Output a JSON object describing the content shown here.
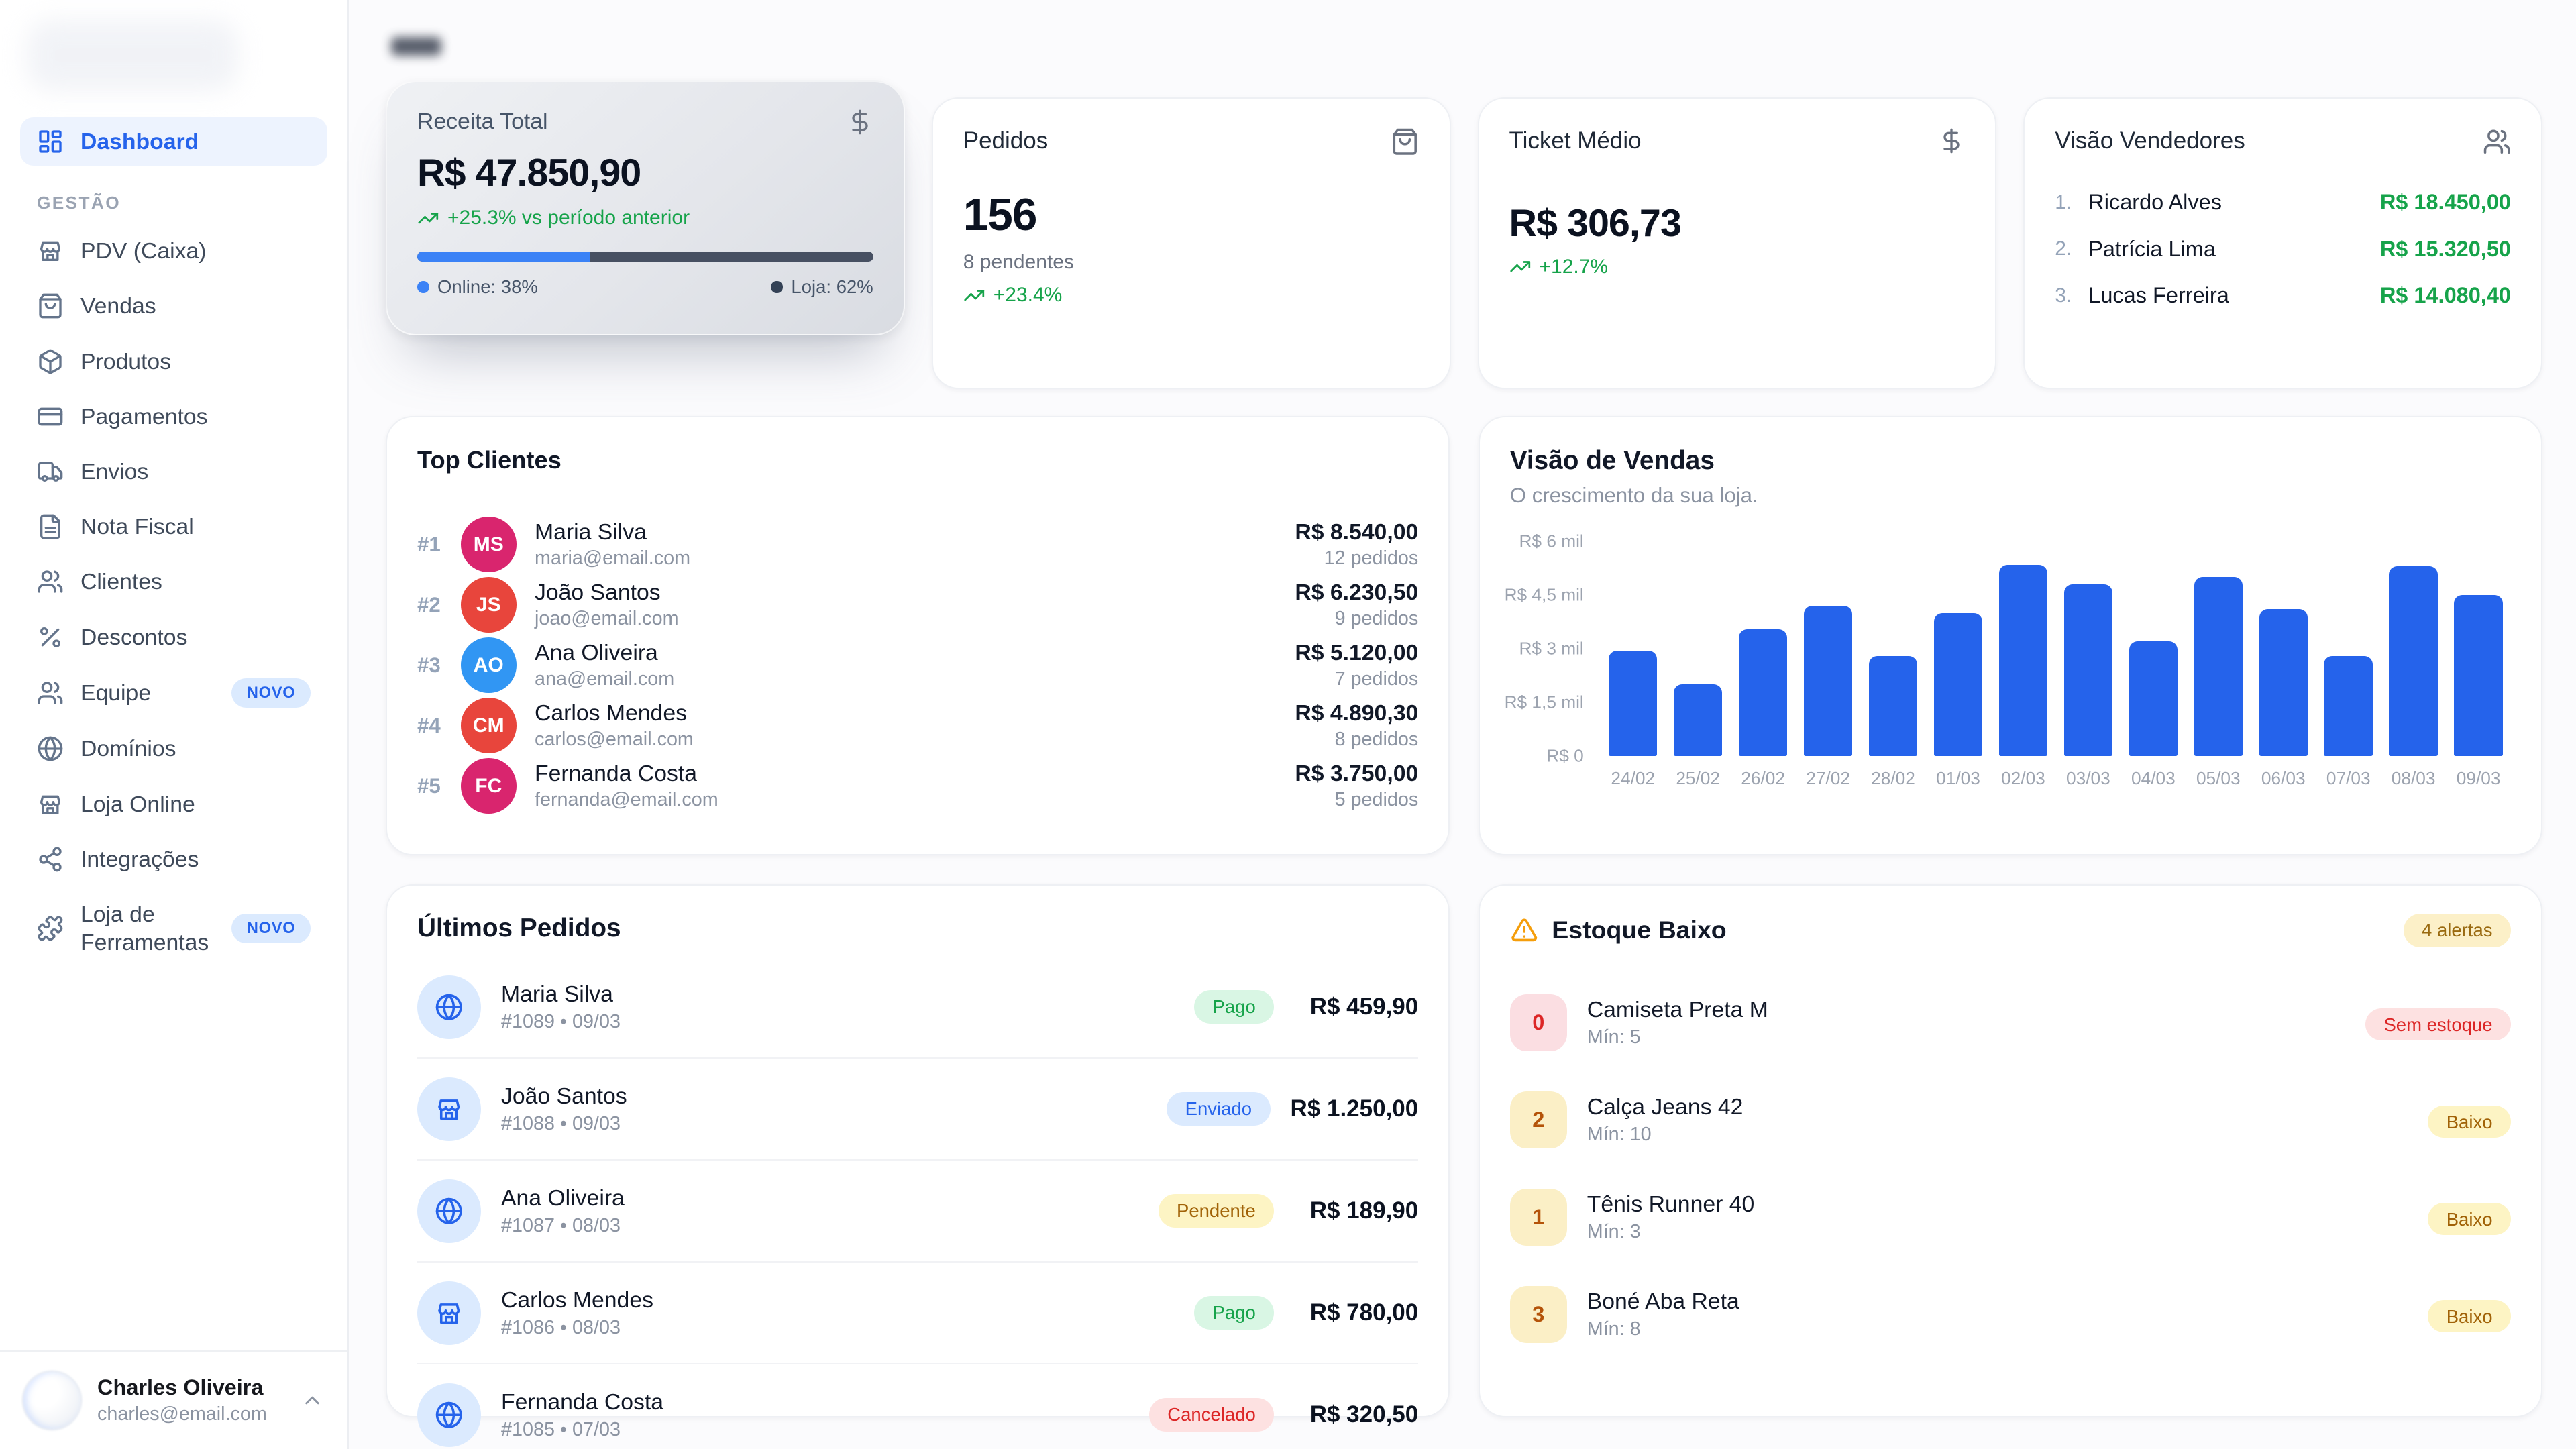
{
  "colors": {
    "accent": "#2563eb",
    "positive": "#16a34a",
    "warning": "#f59e0b",
    "danger": "#dc2626"
  },
  "sidebar": {
    "active_item": {
      "label": "Dashboard"
    },
    "section_label": "GESTÃO",
    "items": [
      {
        "label": "PDV (Caixa)"
      },
      {
        "label": "Vendas"
      },
      {
        "label": "Produtos"
      },
      {
        "label": "Pagamentos"
      },
      {
        "label": "Envios"
      },
      {
        "label": "Nota Fiscal"
      },
      {
        "label": "Clientes"
      },
      {
        "label": "Descontos"
      },
      {
        "label": "Equipe",
        "badge": "NOVO"
      },
      {
        "label": "Domínios"
      },
      {
        "label": "Loja Online"
      },
      {
        "label": "Integrações"
      },
      {
        "label": "Loja de Ferramentas",
        "badge": "NOVO"
      }
    ],
    "user": {
      "name": "Charles Oliveira",
      "email": "charles@email.com"
    }
  },
  "cards": {
    "revenue": {
      "title": "Receita Total",
      "value": "R$ 47.850,90",
      "trend": "+25.3% vs período anterior",
      "online_label": "Online: 38%",
      "store_label": "Loja: 62%",
      "online_pct": 38
    },
    "orders": {
      "title": "Pedidos",
      "value": "156",
      "pending": "8 pendentes",
      "trend": "+23.4%"
    },
    "ticket": {
      "title": "Ticket Médio",
      "value": "R$ 306,73",
      "trend": "+12.7%"
    },
    "sellers": {
      "title": "Visão Vendedores",
      "rows": [
        {
          "rank": "1.",
          "name": "Ricardo Alves",
          "value": "R$ 18.450,00"
        },
        {
          "rank": "2.",
          "name": "Patrícia Lima",
          "value": "R$ 15.320,50"
        },
        {
          "rank": "3.",
          "name": "Lucas Ferreira",
          "value": "R$ 14.080,40"
        }
      ]
    }
  },
  "top_clients": {
    "title": "Top Clientes",
    "rows": [
      {
        "rank": "#1",
        "initials": "MS",
        "color": "#d9256e",
        "name": "Maria Silva",
        "email": "maria@email.com",
        "amount": "R$ 8.540,00",
        "orders": "12 pedidos"
      },
      {
        "rank": "#2",
        "initials": "JS",
        "color": "#e8453c",
        "name": "João Santos",
        "email": "joao@email.com",
        "amount": "R$ 6.230,50",
        "orders": "9 pedidos"
      },
      {
        "rank": "#3",
        "initials": "AO",
        "color": "#3196f3",
        "name": "Ana Oliveira",
        "email": "ana@email.com",
        "amount": "R$ 5.120,00",
        "orders": "7 pedidos"
      },
      {
        "rank": "#4",
        "initials": "CM",
        "color": "#e8453c",
        "name": "Carlos Mendes",
        "email": "carlos@email.com",
        "amount": "R$ 4.890,30",
        "orders": "8 pedidos"
      },
      {
        "rank": "#5",
        "initials": "FC",
        "color": "#d9256e",
        "name": "Fernanda Costa",
        "email": "fernanda@email.com",
        "amount": "R$ 3.750,00",
        "orders": "5 pedidos"
      }
    ]
  },
  "chart_data": {
    "type": "bar",
    "title": "Visão de Vendas",
    "subtitle": "O crescimento da sua loja.",
    "categories": [
      "24/02",
      "25/02",
      "26/02",
      "27/02",
      "28/02",
      "01/03",
      "02/03",
      "03/03",
      "04/03",
      "05/03",
      "06/03",
      "07/03",
      "08/03",
      "09/03"
    ],
    "values": [
      2950,
      2000,
      3550,
      4200,
      2800,
      4000,
      5350,
      4800,
      3200,
      5000,
      4100,
      2800,
      5300,
      4500
    ],
    "ylabel_ticks": [
      "R$ 0",
      "R$ 1,5 mil",
      "R$ 3 mil",
      "R$ 4,5 mil",
      "R$ 6 mil"
    ],
    "ylim": [
      0,
      6000
    ],
    "xlabel": "",
    "ylabel": "",
    "grid": false,
    "legend": "none",
    "bar_color": "#2563eb"
  },
  "latest_orders": {
    "title": "Últimos Pedidos",
    "rows": [
      {
        "name": "Maria Silva",
        "meta": "#1089 • 09/03",
        "channel": "online",
        "status": "Pago",
        "status_type": "green",
        "amount": "R$ 459,90"
      },
      {
        "name": "João Santos",
        "meta": "#1088 • 09/03",
        "channel": "loja",
        "status": "Enviado",
        "status_type": "blue",
        "amount": "R$ 1.250,00"
      },
      {
        "name": "Ana Oliveira",
        "meta": "#1087 • 08/03",
        "channel": "online",
        "status": "Pendente",
        "status_type": "yellow",
        "amount": "R$ 189,90"
      },
      {
        "name": "Carlos Mendes",
        "meta": "#1086 • 08/03",
        "channel": "loja",
        "status": "Pago",
        "status_type": "green",
        "amount": "R$ 780,00"
      },
      {
        "name": "Fernanda Costa",
        "meta": "#1085 • 07/03",
        "channel": "online",
        "status": "Cancelado",
        "status_type": "red",
        "amount": "R$ 320,50"
      }
    ]
  },
  "low_stock": {
    "title": "Estoque Baixo",
    "alerts_badge": "4 alertas",
    "rows": [
      {
        "qty": "0",
        "name": "Camiseta Preta M",
        "min": "Mín: 5",
        "status": "Sem estoque",
        "level": "red"
      },
      {
        "qty": "2",
        "name": "Calça Jeans 42",
        "min": "Mín: 10",
        "status": "Baixo",
        "level": "amber"
      },
      {
        "qty": "1",
        "name": "Tênis Runner 40",
        "min": "Mín: 3",
        "status": "Baixo",
        "level": "amber"
      },
      {
        "qty": "3",
        "name": "Boné Aba Reta",
        "min": "Mín: 8",
        "status": "Baixo",
        "level": "amber"
      }
    ]
  }
}
